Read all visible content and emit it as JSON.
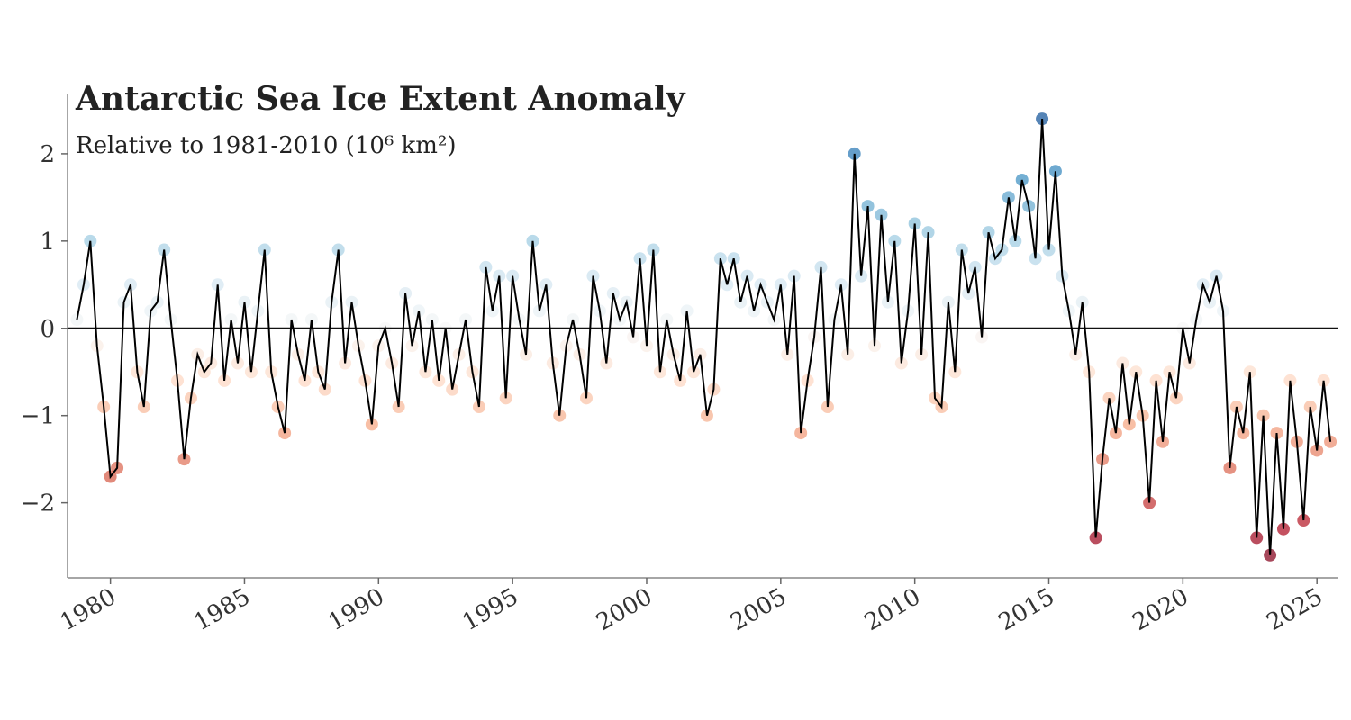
{
  "chart_data": {
    "type": "line",
    "title": "Antarctic Sea Ice Extent Anomaly",
    "subtitle": "Relative to 1981-2010 (10⁶ km²)",
    "x": [
      1978.75,
      1979,
      1979.25,
      1979.5,
      1979.75,
      1980,
      1980.25,
      1980.5,
      1980.75,
      1981,
      1981.25,
      1981.5,
      1981.75,
      1982,
      1982.25,
      1982.5,
      1982.75,
      1983,
      1983.25,
      1983.5,
      1983.75,
      1984,
      1984.25,
      1984.5,
      1984.75,
      1985,
      1985.25,
      1985.5,
      1985.75,
      1986,
      1986.25,
      1986.5,
      1986.75,
      1987,
      1987.25,
      1987.5,
      1987.75,
      1988,
      1988.25,
      1988.5,
      1988.75,
      1989,
      1989.25,
      1989.5,
      1989.75,
      1990,
      1990.25,
      1990.5,
      1990.75,
      1991,
      1991.25,
      1991.5,
      1991.75,
      1992,
      1992.25,
      1992.5,
      1992.75,
      1993,
      1993.25,
      1993.5,
      1993.75,
      1994,
      1994.25,
      1994.5,
      1994.75,
      1995,
      1995.25,
      1995.5,
      1995.75,
      1996,
      1996.25,
      1996.5,
      1996.75,
      1997,
      1997.25,
      1997.5,
      1997.75,
      1998,
      1998.25,
      1998.5,
      1998.75,
      1999,
      1999.25,
      1999.5,
      1999.75,
      2000,
      2000.25,
      2000.5,
      2000.75,
      2001,
      2001.25,
      2001.5,
      2001.75,
      2002,
      2002.25,
      2002.5,
      2002.75,
      2003,
      2003.25,
      2003.5,
      2003.75,
      2004,
      2004.25,
      2004.5,
      2004.75,
      2005,
      2005.25,
      2005.5,
      2005.75,
      2006,
      2006.25,
      2006.5,
      2006.75,
      2007,
      2007.25,
      2007.5,
      2007.75,
      2008,
      2008.25,
      2008.5,
      2008.75,
      2009,
      2009.25,
      2009.5,
      2009.75,
      2010,
      2010.25,
      2010.5,
      2010.75,
      2011,
      2011.25,
      2011.5,
      2011.75,
      2012,
      2012.25,
      2012.5,
      2012.75,
      2013,
      2013.25,
      2013.5,
      2013.75,
      2014,
      2014.25,
      2014.5,
      2014.75,
      2015,
      2015.25,
      2015.5,
      2015.75,
      2016,
      2016.25,
      2016.5,
      2016.75,
      2017,
      2017.25,
      2017.5,
      2017.75,
      2018,
      2018.25,
      2018.5,
      2018.75,
      2019,
      2019.25,
      2019.5,
      2019.75,
      2020,
      2020.25,
      2020.5,
      2020.75,
      2021,
      2021.25,
      2021.5,
      2021.75,
      2022,
      2022.25,
      2022.5,
      2022.75,
      2023,
      2023.25,
      2023.5,
      2023.75,
      2024,
      2024.25,
      2024.5,
      2024.75,
      2025,
      2025.25,
      2025.5
    ],
    "values": [
      0.1,
      0.5,
      1.0,
      -0.2,
      -0.9,
      -1.7,
      -1.6,
      0.3,
      0.5,
      -0.5,
      -0.9,
      0.2,
      0.3,
      0.9,
      0.1,
      -0.6,
      -1.5,
      -0.8,
      -0.3,
      -0.5,
      -0.4,
      0.5,
      -0.6,
      0.1,
      -0.4,
      0.3,
      -0.5,
      0.2,
      0.9,
      -0.5,
      -0.9,
      -1.2,
      0.1,
      -0.3,
      -0.6,
      0.1,
      -0.5,
      -0.7,
      0.3,
      0.9,
      -0.4,
      0.3,
      -0.2,
      -0.6,
      -1.1,
      -0.2,
      0.0,
      -0.4,
      -0.9,
      0.4,
      -0.2,
      0.2,
      -0.5,
      0.1,
      -0.6,
      0.0,
      -0.7,
      -0.3,
      0.1,
      -0.5,
      -0.9,
      0.7,
      0.2,
      0.6,
      -0.8,
      0.6,
      0.1,
      -0.3,
      1.0,
      0.2,
      0.5,
      -0.4,
      -1.0,
      -0.2,
      0.1,
      -0.3,
      -0.8,
      0.6,
      0.2,
      -0.4,
      0.4,
      0.1,
      0.3,
      -0.1,
      0.8,
      -0.2,
      0.9,
      -0.5,
      0.1,
      -0.3,
      -0.6,
      0.2,
      -0.5,
      -0.3,
      -1.0,
      -0.7,
      0.8,
      0.5,
      0.8,
      0.3,
      0.6,
      0.2,
      0.5,
      0.3,
      0.1,
      0.5,
      -0.3,
      0.6,
      -1.2,
      -0.6,
      -0.1,
      0.7,
      -0.9,
      0.1,
      0.5,
      -0.3,
      2.0,
      0.6,
      1.4,
      -0.2,
      1.3,
      0.3,
      1.0,
      -0.4,
      0.2,
      1.2,
      -0.3,
      1.1,
      -0.8,
      -0.9,
      0.3,
      -0.5,
      0.9,
      0.4,
      0.7,
      -0.1,
      1.1,
      0.8,
      0.9,
      1.5,
      1.0,
      1.7,
      1.4,
      0.8,
      2.4,
      0.9,
      1.8,
      0.6,
      0.2,
      -0.3,
      0.3,
      -0.5,
      -2.4,
      -1.5,
      -0.8,
      -1.2,
      -0.4,
      -1.1,
      -0.5,
      -1.0,
      -2.0,
      -0.6,
      -1.3,
      -0.5,
      -0.8,
      0.0,
      -0.4,
      0.1,
      0.5,
      0.3,
      0.6,
      0.2,
      -1.6,
      -0.9,
      -1.2,
      -0.5,
      -2.4,
      -1.0,
      -2.6,
      -1.2,
      -2.3,
      -0.6,
      -1.3,
      -2.2,
      -0.9,
      -1.4,
      -0.6,
      -1.3
    ],
    "color": "#000000",
    "colormap": [
      "#67001f",
      "#b2182b",
      "#d6604d",
      "#f4a582",
      "#fddbc7",
      "#f7f7f7",
      "#d1e5f0",
      "#92c5de",
      "#4393c3",
      "#2166ac",
      "#053061"
    ],
    "zero_line": true,
    "xlim": [
      1978.4,
      2025.8
    ],
    "ylim": [
      -2.86,
      2.68
    ],
    "xticks": [
      1980,
      1985,
      1990,
      1995,
      2000,
      2005,
      2010,
      2015,
      2020,
      2025
    ],
    "yticks": [
      {
        "value": -2,
        "label": "−2"
      },
      {
        "value": -1,
        "label": "−1"
      },
      0,
      1,
      2
    ]
  }
}
